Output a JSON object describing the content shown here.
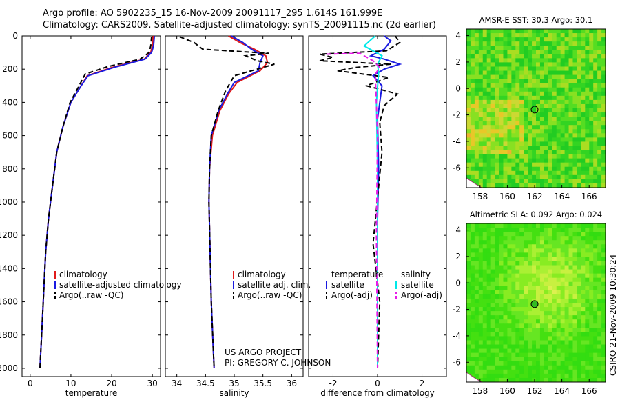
{
  "header": {
    "line1": "Argo profile: AO 5902235_15 16-Nov-2009 20091117_295 1.614S 161.999E",
    "line2": "Climatology: CARS2009. Satellite-adjusted climatology: synTS_20091115.nc (2d earlier)"
  },
  "footer": {
    "project": "US ARGO PROJECT",
    "pi": "PI: GREGORY C. JOHNSON",
    "credit": "CSIRO 21-Nov-2009 10:30:24"
  },
  "colors": {
    "climatology": "#e01a1a",
    "satellite": "#1a1ae0",
    "argo": "#000000",
    "sal_satellite": "#00e8e8",
    "sal_argo": "#e81ae8"
  },
  "chart_data": [
    {
      "id": "temperature",
      "type": "line",
      "xlabel": "temperature",
      "xlim": [
        -2,
        32
      ],
      "ylim": [
        2050,
        0
      ],
      "xticks": [
        0,
        10,
        20,
        30
      ],
      "yticks": [
        0,
        200,
        400,
        600,
        800,
        1000,
        1200,
        1400,
        1600,
        1800,
        2000
      ],
      "legend": [
        "climatology",
        "satellite-adjusted climatology",
        "Argo(..raw -QC)"
      ],
      "series": [
        {
          "name": "climatology",
          "color": "#e01a1a",
          "dash": false,
          "x": [
            30.2,
            30.0,
            29.6,
            28.0,
            20.0,
            14.0,
            12.5,
            10.0,
            8.0,
            6.5,
            5.5,
            4.5,
            3.8,
            3.4,
            3.0,
            2.6,
            2.4
          ],
          "y": [
            0,
            60,
            100,
            140,
            190,
            240,
            300,
            400,
            550,
            700,
            900,
            1100,
            1300,
            1500,
            1700,
            1900,
            2000
          ]
        },
        {
          "name": "satellite",
          "color": "#1a1ae0",
          "dash": false,
          "x": [
            30.5,
            30.3,
            29.8,
            28.2,
            20.5,
            14.2,
            12.5,
            10.0,
            8.0,
            6.5,
            5.5,
            4.5,
            3.8,
            3.4,
            3.0,
            2.6,
            2.4
          ],
          "y": [
            0,
            60,
            100,
            140,
            190,
            240,
            300,
            400,
            550,
            700,
            900,
            1100,
            1300,
            1500,
            1700,
            1900,
            2000
          ]
        },
        {
          "name": "Argo",
          "color": "#000000",
          "dash": true,
          "x": [
            29.8,
            29.6,
            29.2,
            27.0,
            19.0,
            13.5,
            12.0,
            9.8,
            8.0,
            6.5,
            5.5,
            4.5,
            3.8,
            3.4,
            3.0,
            2.6,
            2.4
          ],
          "y": [
            5,
            60,
            100,
            140,
            185,
            230,
            300,
            400,
            550,
            700,
            900,
            1100,
            1300,
            1500,
            1700,
            1900,
            2000
          ]
        }
      ]
    },
    {
      "id": "salinity",
      "type": "line",
      "xlabel": "salinity",
      "xlim": [
        33.8,
        36.2
      ],
      "ylim": [
        2050,
        0
      ],
      "xticks": [
        34,
        34.5,
        35,
        35.5,
        36
      ],
      "legend": [
        "climatology",
        "satellite adj. clim.",
        "Argo(..raw -QC)"
      ],
      "series": [
        {
          "name": "climatology",
          "color": "#e01a1a",
          "dash": false,
          "x": [
            34.9,
            35.1,
            35.35,
            35.55,
            35.58,
            35.45,
            35.05,
            34.9,
            34.75,
            34.62,
            34.57,
            34.56,
            34.58,
            34.6,
            34.63,
            34.65
          ],
          "y": [
            0,
            40,
            80,
            120,
            160,
            210,
            280,
            350,
            450,
            600,
            800,
            1000,
            1300,
            1600,
            1850,
            2000
          ]
        },
        {
          "name": "satellite",
          "color": "#1a1ae0",
          "dash": false,
          "x": [
            34.95,
            35.15,
            35.3,
            35.5,
            35.45,
            35.42,
            35.0,
            34.88,
            34.73,
            34.6,
            34.57,
            34.56,
            34.58,
            34.6,
            34.63,
            34.65
          ],
          "y": [
            0,
            40,
            80,
            120,
            160,
            210,
            280,
            350,
            450,
            600,
            800,
            1000,
            1300,
            1600,
            1850,
            2000
          ]
        },
        {
          "name": "Argo",
          "color": "#000000",
          "dash": true,
          "x": [
            34.05,
            34.3,
            34.45,
            35.6,
            35.2,
            35.4,
            35.7,
            35.0,
            34.85,
            34.72,
            34.6,
            34.57,
            34.56,
            34.58,
            34.6,
            34.63,
            34.65
          ],
          "y": [
            5,
            40,
            80,
            105,
            120,
            150,
            170,
            240,
            330,
            450,
            600,
            800,
            1000,
            1300,
            1600,
            1850,
            2000
          ]
        }
      ]
    },
    {
      "id": "difference",
      "type": "line",
      "xlabel": "difference from climatology",
      "xlim": [
        -3.1,
        3.1
      ],
      "ylim": [
        2050,
        0
      ],
      "xticks": [
        -2,
        0,
        2
      ],
      "legend_groups": {
        "temperature": [
          "satellite",
          "Argo(-adj)"
        ],
        "salinity": [
          "satellite",
          "Argo(-adj)"
        ]
      },
      "series": [
        {
          "name": "temperature satellite",
          "color": "#1a1ae0",
          "dash": false,
          "x": [
            0.3,
            0.6,
            0.3,
            -0.3,
            0.3,
            1.0,
            0.3,
            -0.2,
            0.2,
            0.0,
            0.05,
            0.0,
            0.0,
            0.0,
            0.0
          ],
          "y": [
            0,
            30,
            80,
            120,
            140,
            170,
            200,
            240,
            300,
            500,
            800,
            1100,
            1400,
            1700,
            2000
          ]
        },
        {
          "name": "temperature Argo",
          "color": "#000000",
          "dash": true,
          "x": [
            0.8,
            1.0,
            0.4,
            -2.6,
            -2.0,
            -2.6,
            0.6,
            -1.0,
            -1.8,
            0.5,
            -0.5,
            0.9,
            0.3,
            0.1,
            0.2,
            -0.2,
            0.1,
            0.0
          ],
          "y": [
            0,
            40,
            90,
            110,
            130,
            150,
            170,
            190,
            210,
            250,
            300,
            350,
            420,
            520,
            700,
            1250,
            1600,
            2000
          ]
        },
        {
          "name": "salinity satellite",
          "color": "#00e8e8",
          "dash": false,
          "x": [
            -0.1,
            -0.6,
            0.2,
            0.0,
            0.05,
            -0.05,
            0.0,
            0.0,
            0.0
          ],
          "y": [
            0,
            60,
            120,
            170,
            220,
            400,
            800,
            1400,
            2000
          ]
        },
        {
          "name": "salinity Argo",
          "color": "#e81ae8",
          "dash": true,
          "x": [
            -2.3,
            -0.8,
            -0.2,
            0.1,
            -0.1,
            0.0,
            -0.05,
            0.0
          ],
          "y": [
            110,
            105,
            150,
            190,
            230,
            600,
            1200,
            2000
          ]
        }
      ]
    },
    {
      "id": "sst_map",
      "type": "heatmap",
      "title": "AMSR-E SST: 30.3 Argo: 30.1",
      "xlim": [
        157,
        167.2
      ],
      "ylim": [
        -7.5,
        4.5
      ],
      "xticks": [
        158,
        160,
        162,
        164,
        166
      ],
      "yticks": [
        4,
        2,
        0,
        -2,
        -4,
        -6
      ],
      "marker": {
        "lon": 162.0,
        "lat": -1.6
      }
    },
    {
      "id": "sla_map",
      "type": "heatmap",
      "title": "Altimetric SLA: 0.092 Argo: 0.024",
      "xlim": [
        157,
        167.2
      ],
      "ylim": [
        -7.5,
        4.5
      ],
      "xticks": [
        158,
        160,
        162,
        164,
        166
      ],
      "yticks": [
        4,
        2,
        0,
        -2,
        -4,
        -6
      ],
      "marker": {
        "lon": 162.0,
        "lat": -1.6
      }
    }
  ]
}
